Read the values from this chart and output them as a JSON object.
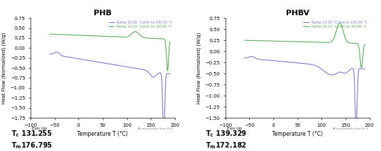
{
  "phb_title": "PHB",
  "phbv_title": "PHBV",
  "ylabel": "Heat Flow (Normalized) (W/g)",
  "xlabel": "Temperature T (°C)",
  "exo_up_label": "Exo Up",
  "ta_instruments": "TA Instruments Trios V3.3",
  "xlim": [
    -100,
    200
  ],
  "phb_ylim": [
    -1.75,
    0.75
  ],
  "phbv_ylim": [
    -1.5,
    0.75
  ],
  "phb_yticks": [
    0.75,
    0.5,
    0.25,
    0.0,
    -0.25,
    -0.5,
    -0.75,
    -1.0,
    -1.25,
    -1.5,
    -1.75
  ],
  "phbv_yticks": [
    0.75,
    0.5,
    0.25,
    0.0,
    -0.25,
    -0.5,
    -0.75,
    -1.0,
    -1.25,
    -1.5
  ],
  "xticks": [
    -100,
    -50,
    0,
    50,
    100,
    150,
    200
  ],
  "blue_color": "#7b7bcc",
  "green_color": "#5aaa5a",
  "legend_blue_phb": "Ramp 10.00 °C/min to 190.00 °C",
  "legend_green_phb": "Ramp 10.00 °C/min to -60.00 °C",
  "legend_blue_phbv": "Ramp 10.00 °C/min to 190.00 °C",
  "legend_green_phbv": "Ramp 10.00 °C/min to -60.00 °C",
  "phb_tc": "131.255",
  "phb_tm": "176.795",
  "phbv_tc": "139.329",
  "phbv_tm": "172.182",
  "bg_color": "#f5f5f5",
  "plot_bg": "#ffffff"
}
